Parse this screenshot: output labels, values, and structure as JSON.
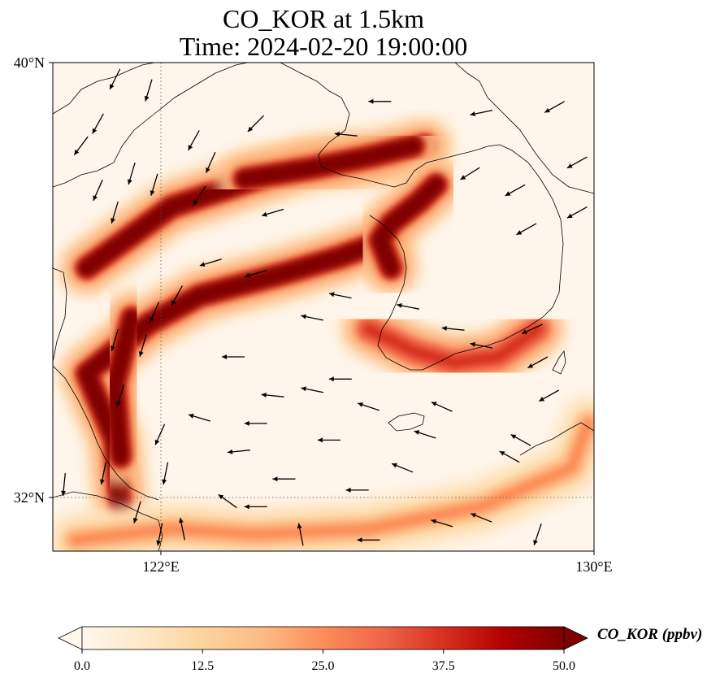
{
  "title": {
    "line1": "CO_KOR at 1.5km",
    "line2": "Time: 2024-02-20 19:00:00"
  },
  "map": {
    "lon_range": [
      120.4,
      130
    ],
    "lat_range": [
      31.2,
      40
    ],
    "lon_ticks": [
      {
        "value": 122,
        "label": "122°E"
      },
      {
        "value": 130,
        "label": "130°E"
      }
    ],
    "lat_ticks": [
      {
        "value": 40,
        "label": "40°N"
      },
      {
        "value": 32,
        "label": "32°N"
      }
    ],
    "gridlines": "dotted at 122°E and 32°N",
    "background_color": "#fff5eb",
    "plumes": [
      {
        "name": "korea-bay-plume",
        "peak_ppbv": 50,
        "path": [
          [
            121.0,
            36.3
          ],
          [
            122.5,
            37.4
          ],
          [
            124.0,
            37.9
          ],
          [
            125.0,
            38.2
          ],
          [
            126.2,
            38.3
          ],
          [
            127.0,
            38.5
          ]
        ]
      },
      {
        "name": "korea-bay-core",
        "peak_ppbv": 50,
        "path": [
          [
            123.8,
            37.9
          ],
          [
            125.0,
            38.1
          ],
          [
            126.0,
            38.3
          ],
          [
            126.8,
            38.5
          ]
        ]
      },
      {
        "name": "yellow-sea-west-arm",
        "peak_ppbv": 50,
        "path": [
          [
            121.6,
            32.0
          ],
          [
            121.5,
            33.2
          ],
          [
            121.0,
            34.4
          ],
          [
            122.1,
            35.3
          ],
          [
            123.0,
            35.8
          ],
          [
            124.5,
            36.2
          ],
          [
            125.5,
            36.5
          ],
          [
            126.3,
            36.8
          ]
        ]
      },
      {
        "name": "shanghai-core",
        "peak_ppbv": 50,
        "path": [
          [
            121.6,
            32.9
          ],
          [
            121.5,
            34.2
          ],
          [
            121.8,
            35.4
          ]
        ]
      },
      {
        "name": "west-korea-coast",
        "peak_ppbv": 47,
        "path": [
          [
            126.4,
            36.3
          ],
          [
            126.2,
            36.8
          ],
          [
            126.4,
            37.1
          ],
          [
            126.9,
            37.5
          ],
          [
            127.2,
            37.8
          ]
        ]
      },
      {
        "name": "south-korea-coast",
        "peak_ppbv": 40,
        "path": [
          [
            126.0,
            35.2
          ],
          [
            126.8,
            34.8
          ],
          [
            127.5,
            34.6
          ],
          [
            128.3,
            34.7
          ],
          [
            129.0,
            35.2
          ]
        ]
      },
      {
        "name": "east-china-sea-southern-arc",
        "peak_ppbv": 22,
        "path": [
          [
            120.8,
            31.4
          ],
          [
            122.5,
            31.6
          ],
          [
            124.0,
            31.5
          ],
          [
            126.0,
            31.6
          ],
          [
            128.0,
            32.0
          ],
          [
            129.6,
            32.7
          ],
          [
            129.9,
            33.5
          ]
        ]
      }
    ],
    "wind_vectors": [
      {
        "lon": 121.5,
        "lat": 39.7,
        "u": -0.5,
        "v": -1.0
      },
      {
        "lon": 122.1,
        "lat": 39.5,
        "u": -0.3,
        "v": -1.0
      },
      {
        "lon": 121.2,
        "lat": 38.9,
        "u": -0.5,
        "v": -0.9
      },
      {
        "lon": 120.9,
        "lat": 38.5,
        "u": -0.6,
        "v": -0.8
      },
      {
        "lon": 121.2,
        "lat": 37.7,
        "u": -0.4,
        "v": -0.9
      },
      {
        "lon": 121.8,
        "lat": 38.0,
        "u": -0.3,
        "v": -1.0
      },
      {
        "lon": 122.2,
        "lat": 37.8,
        "u": -0.3,
        "v": -1.0
      },
      {
        "lon": 121.5,
        "lat": 37.3,
        "u": -0.3,
        "v": -1.0
      },
      {
        "lon": 122.9,
        "lat": 38.6,
        "u": -0.5,
        "v": -0.9
      },
      {
        "lon": 123.2,
        "lat": 38.2,
        "u": -0.4,
        "v": -0.9
      },
      {
        "lon": 123.0,
        "lat": 37.6,
        "u": -0.5,
        "v": -0.8
      },
      {
        "lon": 124.0,
        "lat": 38.9,
        "u": -0.7,
        "v": -0.7
      },
      {
        "lon": 125.6,
        "lat": 38.7,
        "u": -1.0,
        "v": 0.1
      },
      {
        "lon": 126.2,
        "lat": 39.3,
        "u": -1.0,
        "v": 0.0
      },
      {
        "lon": 128.0,
        "lat": 39.1,
        "u": -1.0,
        "v": -0.2
      },
      {
        "lon": 129.3,
        "lat": 39.2,
        "u": -0.9,
        "v": -0.5
      },
      {
        "lon": 129.7,
        "lat": 38.2,
        "u": -0.9,
        "v": -0.5
      },
      {
        "lon": 129.7,
        "lat": 37.3,
        "u": -0.9,
        "v": -0.5
      },
      {
        "lon": 128.6,
        "lat": 37.7,
        "u": -0.9,
        "v": -0.5
      },
      {
        "lon": 128.8,
        "lat": 37.0,
        "u": -0.9,
        "v": -0.5
      },
      {
        "lon": 127.8,
        "lat": 38.0,
        "u": -0.8,
        "v": -0.5
      },
      {
        "lon": 124.3,
        "lat": 37.3,
        "u": -1.0,
        "v": -0.3
      },
      {
        "lon": 123.2,
        "lat": 36.4,
        "u": -1.0,
        "v": -0.3
      },
      {
        "lon": 124.0,
        "lat": 36.2,
        "u": -1.0,
        "v": -0.3
      },
      {
        "lon": 122.6,
        "lat": 35.8,
        "u": -0.5,
        "v": -0.9
      },
      {
        "lon": 122.2,
        "lat": 35.5,
        "u": -0.4,
        "v": -0.9
      },
      {
        "lon": 121.5,
        "lat": 35.0,
        "u": -0.3,
        "v": -1.0
      },
      {
        "lon": 122.0,
        "lat": 34.9,
        "u": -0.3,
        "v": -1.0
      },
      {
        "lon": 121.6,
        "lat": 34.0,
        "u": -0.3,
        "v": -1.0
      },
      {
        "lon": 122.3,
        "lat": 33.3,
        "u": -0.4,
        "v": -0.9
      },
      {
        "lon": 122.4,
        "lat": 32.6,
        "u": -0.2,
        "v": -1.0
      },
      {
        "lon": 121.3,
        "lat": 32.6,
        "u": -0.2,
        "v": -1.0
      },
      {
        "lon": 120.6,
        "lat": 32.4,
        "u": -0.1,
        "v": -1.0
      },
      {
        "lon": 123.6,
        "lat": 34.7,
        "u": -1.0,
        "v": 0.0
      },
      {
        "lon": 125.0,
        "lat": 35.4,
        "u": -1.0,
        "v": 0.2
      },
      {
        "lon": 125.5,
        "lat": 35.8,
        "u": -1.0,
        "v": 0.2
      },
      {
        "lon": 126.7,
        "lat": 35.6,
        "u": -1.0,
        "v": 0.2
      },
      {
        "lon": 127.5,
        "lat": 35.2,
        "u": -1.0,
        "v": 0.1
      },
      {
        "lon": 128.0,
        "lat": 34.9,
        "u": -1.0,
        "v": 0.2
      },
      {
        "lon": 128.9,
        "lat": 35.2,
        "u": -0.9,
        "v": -0.4
      },
      {
        "lon": 129.0,
        "lat": 34.6,
        "u": -0.9,
        "v": -0.5
      },
      {
        "lon": 129.2,
        "lat": 34.0,
        "u": -0.9,
        "v": -0.5
      },
      {
        "lon": 125.5,
        "lat": 34.3,
        "u": -1.0,
        "v": 0.0
      },
      {
        "lon": 126.0,
        "lat": 33.8,
        "u": -0.9,
        "v": 0.3
      },
      {
        "lon": 125.3,
        "lat": 33.2,
        "u": -1.0,
        "v": 0.0
      },
      {
        "lon": 124.3,
        "lat": 34.0,
        "u": -1.0,
        "v": 0.1
      },
      {
        "lon": 125.0,
        "lat": 34.1,
        "u": -1.0,
        "v": 0.2
      },
      {
        "lon": 124.0,
        "lat": 33.5,
        "u": -1.0,
        "v": 0.0
      },
      {
        "lon": 123.7,
        "lat": 33.0,
        "u": -1.0,
        "v": -0.1
      },
      {
        "lon": 123.0,
        "lat": 33.6,
        "u": -1.0,
        "v": 0.3
      },
      {
        "lon": 127.3,
        "lat": 33.8,
        "u": -0.9,
        "v": 0.4
      },
      {
        "lon": 127.0,
        "lat": 33.3,
        "u": -0.9,
        "v": 0.3
      },
      {
        "lon": 128.5,
        "lat": 32.9,
        "u": -0.9,
        "v": 0.5
      },
      {
        "lon": 128.7,
        "lat": 33.2,
        "u": -0.9,
        "v": 0.5
      },
      {
        "lon": 126.6,
        "lat": 32.7,
        "u": -1.0,
        "v": 0.4
      },
      {
        "lon": 125.8,
        "lat": 32.3,
        "u": -1.0,
        "v": 0.0
      },
      {
        "lon": 124.5,
        "lat": 32.5,
        "u": -1.0,
        "v": 0.0
      },
      {
        "lon": 124.0,
        "lat": 32.0,
        "u": -1.0,
        "v": 0.0
      },
      {
        "lon": 123.5,
        "lat": 32.1,
        "u": -0.7,
        "v": 0.5
      },
      {
        "lon": 122.7,
        "lat": 31.6,
        "u": -0.2,
        "v": 1.0
      },
      {
        "lon": 121.9,
        "lat": 31.9,
        "u": -0.3,
        "v": -1.0
      },
      {
        "lon": 122.3,
        "lat": 31.5,
        "u": -0.2,
        "v": -1.0
      },
      {
        "lon": 127.3,
        "lat": 31.7,
        "u": -1.0,
        "v": 0.3
      },
      {
        "lon": 128.0,
        "lat": 31.8,
        "u": -1.0,
        "v": 0.4
      },
      {
        "lon": 126.0,
        "lat": 31.4,
        "u": -1.0,
        "v": 0.0
      },
      {
        "lon": 129.0,
        "lat": 31.5,
        "u": -0.3,
        "v": -0.9
      },
      {
        "lon": 124.8,
        "lat": 31.5,
        "u": -0.2,
        "v": 1.0
      }
    ]
  },
  "colorbar": {
    "label": "CO_KOR (ppbv)",
    "min": 0,
    "max": 50,
    "ticks": [
      "0.0",
      "12.5",
      "25.0",
      "37.5",
      "50.0"
    ],
    "colormap": "OrRd",
    "colors": [
      "#fff7ec",
      "#fee8c8",
      "#fdd49e",
      "#fdbb84",
      "#fc8d59",
      "#ef6548",
      "#d7301f",
      "#b30000",
      "#7f0000"
    ],
    "extend": "both"
  }
}
